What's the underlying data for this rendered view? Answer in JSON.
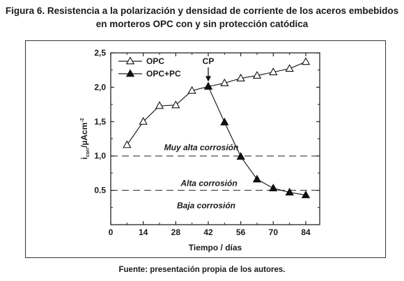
{
  "figure": {
    "title_line1": "Figura 6. Resistencia a la polarización y densidad de corriente de los aceros embebidos",
    "title_line2": "en morteros OPC con y sin protección catódica",
    "source": "Fuente: presentación propia de los autores."
  },
  "chart_data": {
    "type": "line",
    "title": "",
    "xlabel": "Tiempo / días",
    "ylabel": "icorr/µAcm-2",
    "ylabel_main": "i",
    "ylabel_sub": "corr",
    "ylabel_rest": "/µAcm",
    "ylabel_sup": "-2",
    "xlim": [
      0,
      90
    ],
    "ylim": [
      0,
      2.5
    ],
    "xticks": [
      0,
      14,
      28,
      42,
      56,
      70,
      84
    ],
    "xtick_labels": [
      "0",
      "14",
      "28",
      "42",
      "56",
      "70",
      "84"
    ],
    "yticks": [
      0.5,
      1.0,
      1.5,
      2.0,
      2.5
    ],
    "ytick_labels": [
      "0.5",
      "1,0",
      "1,5",
      "2,0",
      "2,5"
    ],
    "grid": false,
    "legend_position": "top-left",
    "series": [
      {
        "name": "OPC",
        "marker": "open-triangle",
        "x": [
          7,
          14,
          21,
          28,
          35,
          42,
          49,
          56,
          63,
          70,
          77,
          84
        ],
        "y": [
          1.16,
          1.5,
          1.73,
          1.74,
          1.95,
          2.01,
          2.06,
          2.13,
          2.17,
          2.22,
          2.27,
          2.37
        ]
      },
      {
        "name": "OPC+PC",
        "marker": "filled-triangle",
        "x": [
          42,
          49,
          56,
          63,
          70,
          77,
          84
        ],
        "y": [
          2.01,
          1.49,
          0.99,
          0.66,
          0.53,
          0.47,
          0.43
        ]
      }
    ],
    "reference_lines": [
      {
        "y": 1.0,
        "style": "dashed",
        "label": "Muy alta corrosión"
      },
      {
        "y": 0.5,
        "style": "dashed",
        "label": "Alta corrosión"
      }
    ],
    "annotations": [
      {
        "text": "Baja corrosión",
        "y": 0.28
      },
      {
        "text": "CP",
        "x": 42,
        "arrow_to_y": 2.01
      }
    ]
  }
}
